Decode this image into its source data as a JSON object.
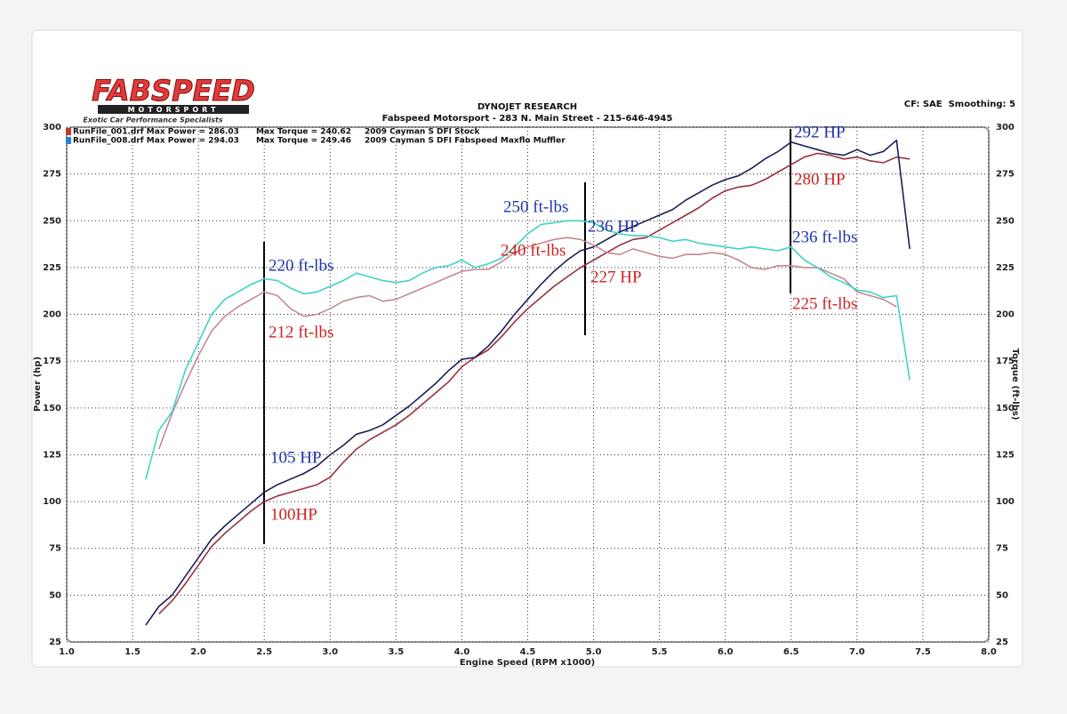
{
  "chart_data": {
    "type": "line",
    "logo": {
      "brand": "FABSPEED",
      "sub": "MOTORSPORT",
      "tagline": "Exotic Car Performance Specialists"
    },
    "title": "DYNOJET RESEARCH",
    "subtitle": "Fabspeed Motorsport - 283 N. Main Street - 215-646-4945",
    "settings_text": "CF: SAE  Smoothing: 5",
    "xlabel": "Engine Speed (RPM x1000)",
    "ylabel": "Power (hp)",
    "y2label": "Torque (ft-lbs)",
    "legend": [
      {
        "color": "#c0392b",
        "file": "RunFile_001.drf Max Power = 286.03",
        "torque": "Max Torque = 240.62",
        "desc": "2009 Cayman S DFI Stock"
      },
      {
        "color": "#2a7fd4",
        "file": "RunFile_008.drf Max Power = 294.03",
        "torque": "Max Torque = 249.46",
        "desc": "2009 Cayman S DFI Fabspeed Maxflo Muffler"
      }
    ],
    "x": [
      1.6,
      1.7,
      1.8,
      1.9,
      2.0,
      2.1,
      2.2,
      2.3,
      2.4,
      2.5,
      2.6,
      2.7,
      2.8,
      2.9,
      3.0,
      3.1,
      3.2,
      3.3,
      3.4,
      3.5,
      3.6,
      3.7,
      3.8,
      3.9,
      4.0,
      4.1,
      4.2,
      4.3,
      4.4,
      4.5,
      4.6,
      4.7,
      4.8,
      4.9,
      5.0,
      5.1,
      5.2,
      5.3,
      5.4,
      5.5,
      5.6,
      5.7,
      5.8,
      5.9,
      6.0,
      6.1,
      6.2,
      6.3,
      6.4,
      6.5,
      6.6,
      6.7,
      6.8,
      6.9,
      7.0,
      7.1,
      7.2,
      7.3,
      7.4
    ],
    "series": [
      {
        "color": "#9a3040",
        "values": [
          null,
          40,
          47,
          56,
          66,
          76,
          83,
          89,
          95,
          100,
          103,
          105,
          107,
          109,
          113,
          121,
          128,
          133,
          137,
          141,
          146,
          152,
          158,
          164,
          172,
          177,
          181,
          188,
          196,
          203,
          209,
          215,
          220,
          225,
          229,
          233,
          237,
          240,
          241,
          245,
          249,
          253,
          257,
          262,
          266,
          268,
          269,
          272,
          276,
          280,
          284,
          286,
          285,
          283,
          284,
          282,
          281,
          284,
          283
        ]
      },
      {
        "color": "#1c1f55",
        "values": [
          34,
          44,
          50,
          60,
          70,
          80,
          87,
          93,
          99,
          105,
          109,
          112,
          115,
          119,
          125,
          130,
          136,
          138,
          141,
          146,
          151,
          157,
          163,
          170,
          176,
          177,
          183,
          191,
          200,
          208,
          216,
          223,
          229,
          234,
          236,
          240,
          244,
          247,
          250,
          253,
          256,
          261,
          265,
          269,
          272,
          274,
          278,
          283,
          287,
          292,
          290,
          288,
          286,
          285,
          288,
          285,
          287,
          293,
          235
        ]
      },
      {
        "color": "#c48a90",
        "axis": "y2",
        "values": [
          null,
          128,
          147,
          163,
          178,
          191,
          199,
          204,
          208,
          212,
          210,
          203,
          199,
          200,
          203,
          207,
          209,
          210,
          207,
          208,
          211,
          214,
          217,
          220,
          223,
          224,
          224,
          228,
          233,
          236,
          238,
          240,
          241,
          240,
          237,
          233,
          232,
          235,
          233,
          231,
          230,
          232,
          232,
          233,
          232,
          229,
          225,
          224,
          226,
          226,
          225,
          225,
          222,
          219,
          212,
          210,
          208,
          204,
          null
        ]
      },
      {
        "color": "#3fd3c6",
        "axis": "y2",
        "values": [
          112,
          138,
          148,
          170,
          185,
          200,
          208,
          212,
          216,
          219,
          218,
          214,
          211,
          212,
          215,
          218,
          222,
          220,
          218,
          217,
          218,
          222,
          225,
          226,
          229,
          225,
          227,
          230,
          236,
          243,
          248,
          249,
          250,
          250,
          249,
          245,
          243,
          242,
          242,
          241,
          239,
          240,
          238,
          237,
          236,
          235,
          236,
          235,
          234,
          236,
          229,
          225,
          220,
          217,
          213,
          212,
          209,
          210,
          165
        ]
      }
    ],
    "annotations": [
      {
        "text": "220 ft-lbs",
        "color": "#2233aa"
      },
      {
        "text": "212 ft-lbs",
        "color": "#cc2222"
      },
      {
        "text": "105 HP",
        "color": "#2233aa"
      },
      {
        "text": "100HP",
        "color": "#cc2222"
      },
      {
        "text": "250 ft-lbs",
        "color": "#2233aa"
      },
      {
        "text": "240 ft-lbs",
        "color": "#cc2222"
      },
      {
        "text": "236 HP",
        "color": "#2233aa"
      },
      {
        "text": "227 HP",
        "color": "#cc2222"
      },
      {
        "text": "292 HP",
        "color": "#2233aa"
      },
      {
        "text": "280 HP",
        "color": "#cc2222"
      },
      {
        "text": "236 ft-lbs",
        "color": "#2233aa"
      },
      {
        "text": "225 ft-lbs",
        "color": "#cc2222"
      }
    ],
    "xlim": [
      1,
      8
    ],
    "xticks": [
      {
        "value": 1,
        "label": "1.0"
      },
      1.5,
      {
        "value": 2,
        "label": "2.0"
      },
      2.5,
      {
        "value": 3,
        "label": "3.0"
      },
      3.5,
      {
        "value": 4,
        "label": "4.0"
      },
      4.5,
      {
        "value": 5,
        "label": "5.0"
      },
      5.5,
      {
        "value": 6,
        "label": "6.0"
      },
      6.5,
      {
        "value": 7,
        "label": "7.0"
      },
      7.5,
      {
        "value": 8,
        "label": "8.0"
      }
    ],
    "ylim": [
      25,
      300
    ],
    "yticks": [
      25,
      50,
      75,
      100,
      125,
      150,
      175,
      200,
      225,
      250,
      275,
      300
    ],
    "y2lim": [
      25,
      300
    ],
    "y2ticks": [
      25,
      50,
      75,
      100,
      125,
      150,
      175,
      200,
      225,
      250,
      275,
      300
    ],
    "grid": true
  }
}
